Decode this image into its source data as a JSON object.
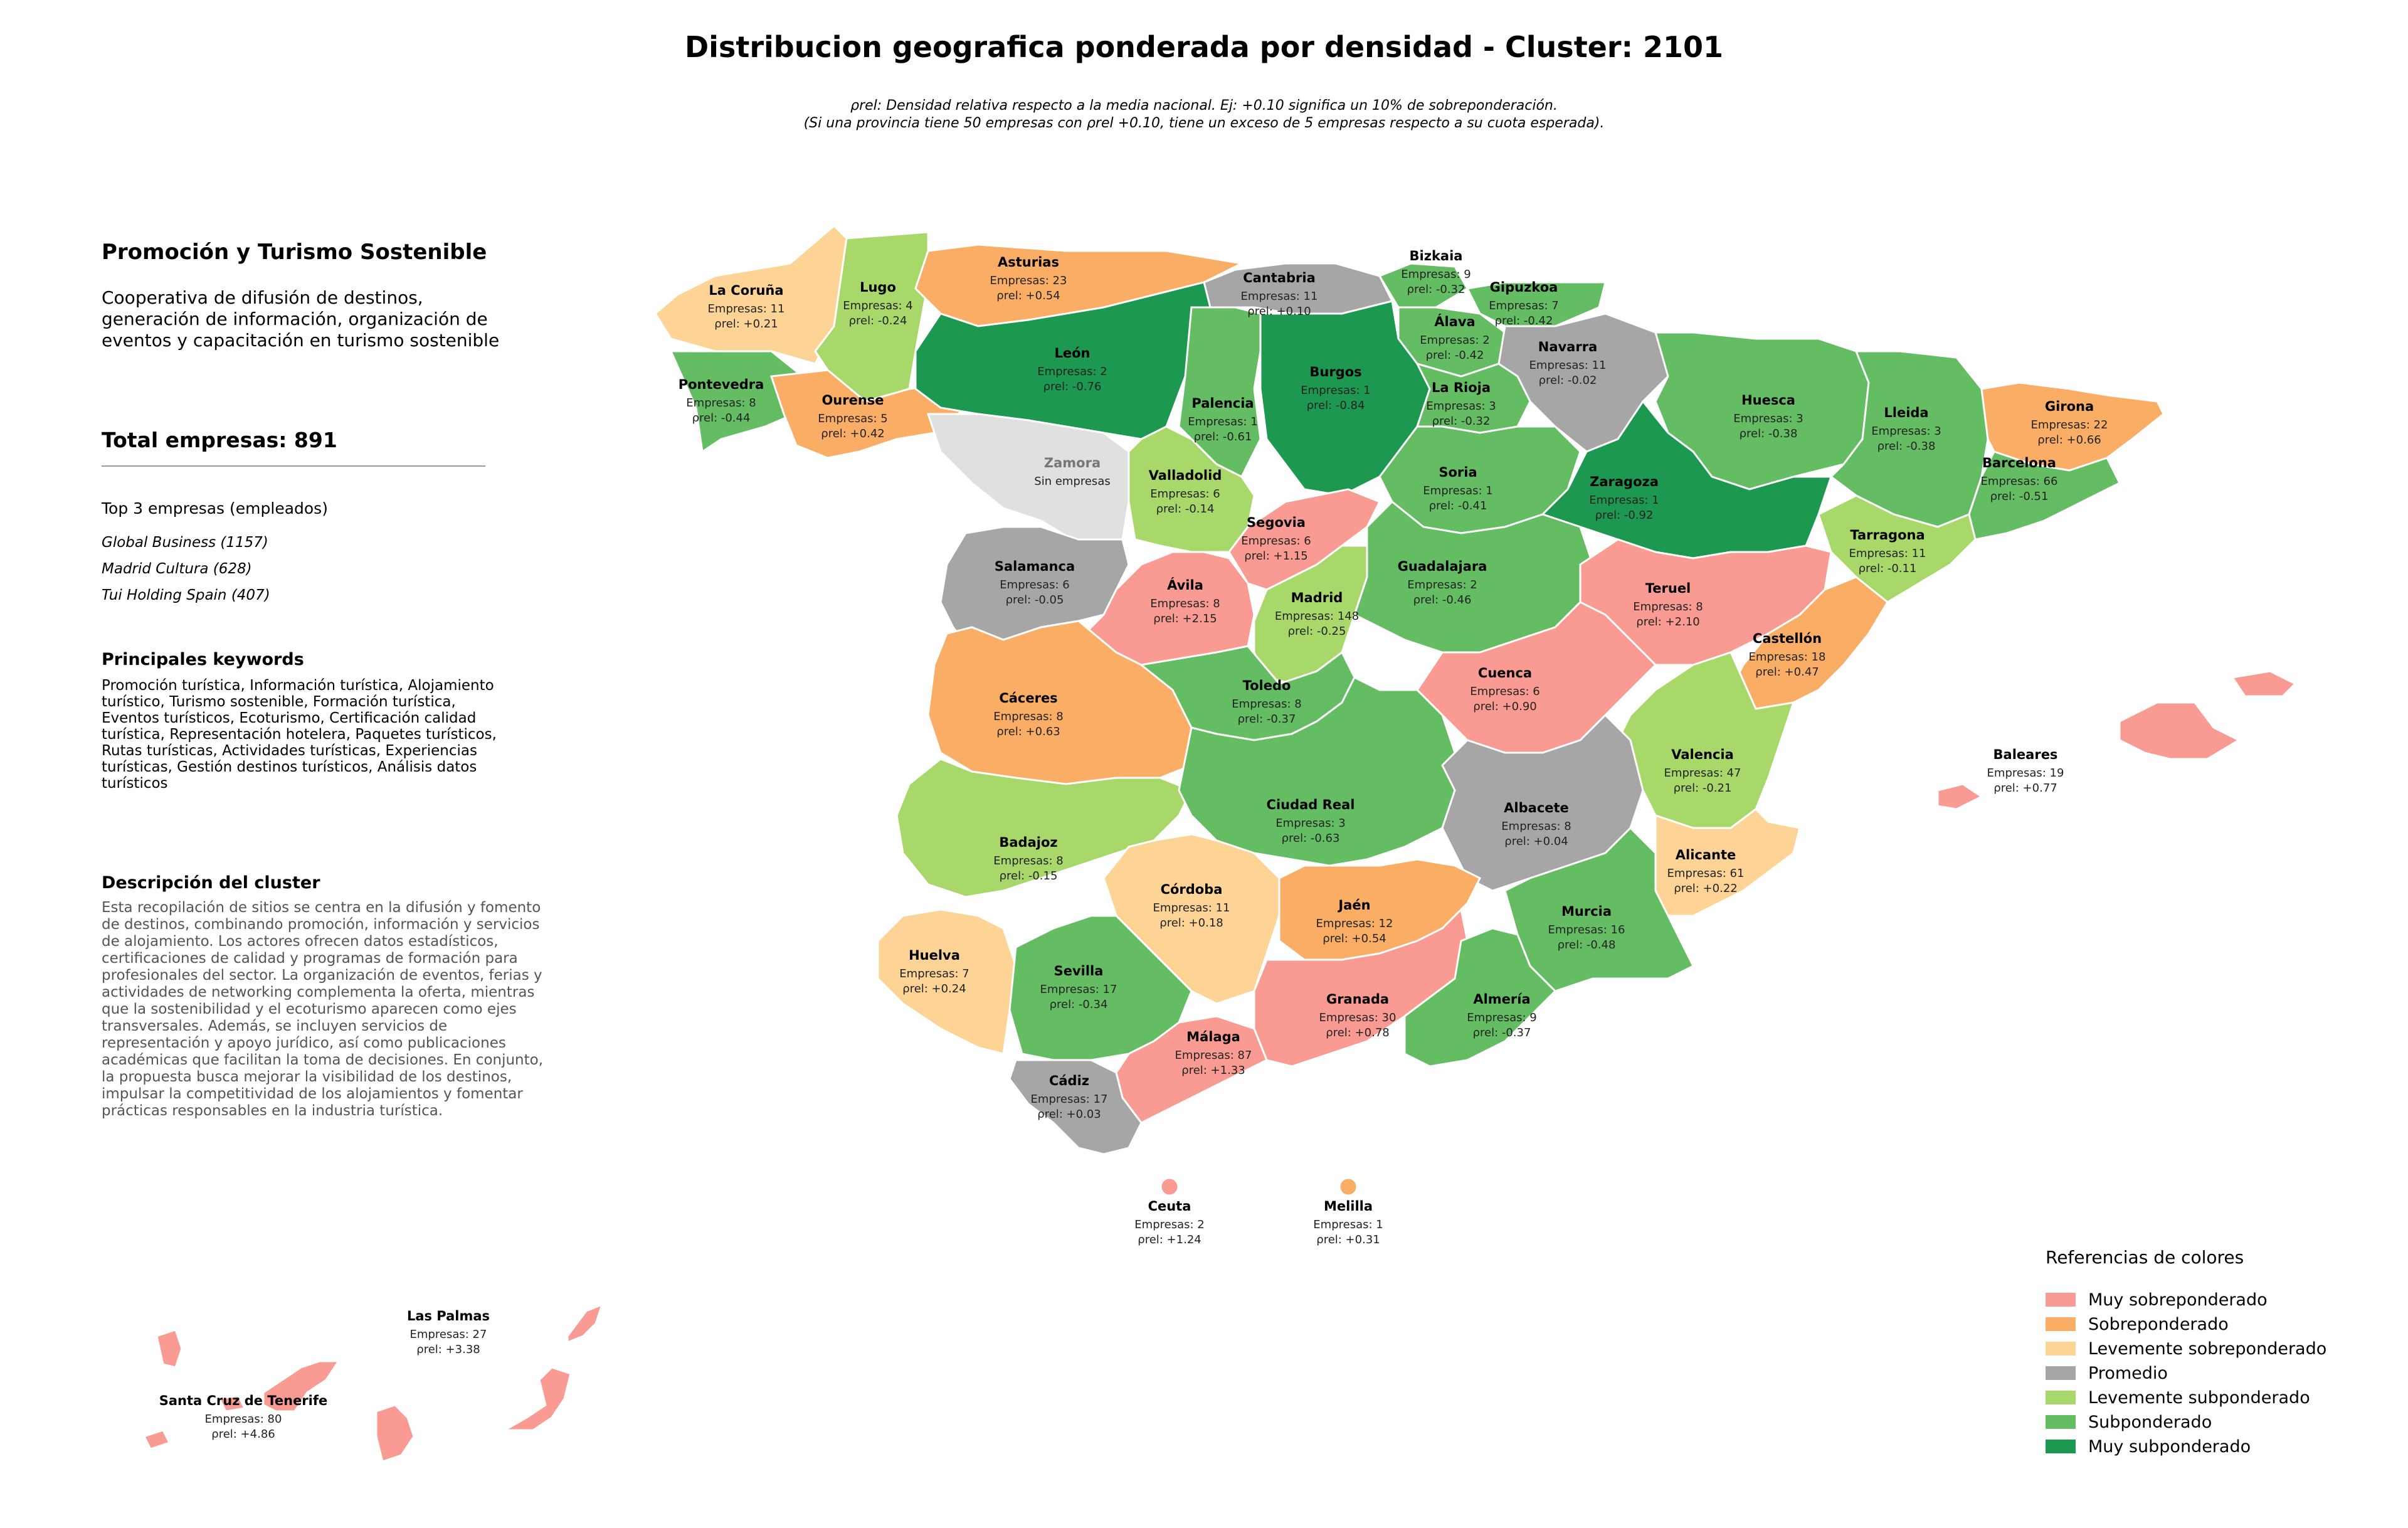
{
  "title": "Distribucion geografica ponderada por densidad - Cluster: 2101",
  "notes": {
    "line1": "ρrel: Densidad relativa respecto a la media nacional. Ej: +0.10 significa un 10% de sobreponderación.",
    "line2": "(Si una provincia tiene 50 empresas con ρrel +0.10, tiene un exceso de 5 empresas respecto a su cuota esperada)."
  },
  "sidebar": {
    "cluster_name": "Promoción y Turismo Sostenible",
    "cluster_summary": "Cooperativa de difusión de destinos, generación de información, organización de eventos y capacitación en turismo sostenible",
    "total": "Total empresas: 891",
    "top3_title": "Top 3 empresas (empleados)",
    "top3": [
      "Global Business (1157)",
      "Madrid Cultura (628)",
      "Tui Holding Spain (407)"
    ],
    "keywords_title": "Principales keywords",
    "keywords": "Promoción turística, Información turística, Alojamiento turístico, Turismo sostenible, Formación turística, Eventos turísticos, Ecoturismo, Certificación calidad turística, Representación hotelera, Paquetes turísticos, Rutas turísticas, Actividades turísticas, Experiencias turísticas, Gestión destinos turísticos, Análisis datos turísticos",
    "description_title": "Descripción del cluster",
    "description": "Esta recopilación de sitios se centra en la difusión y fomento de destinos, combinando promoción, información y servicios de alojamiento. Los actores ofrecen datos estadísticos, certificaciones de calidad y programas de formación para profesionales del sector. La organización de eventos, ferias y actividades de networking complementa la oferta, mientras que la sostenibilidad y el ecoturismo aparecen como ejes transversales. Además, se incluyen servicios de representación y apoyo jurídico, así como publicaciones académicas que facilitan la toma de decisiones. En conjunto, la propuesta busca mejorar la visibilidad de los destinos, impulsar la competitividad de los alojamientos y fomentar prácticas responsables en la industria turística."
  },
  "legend": {
    "title": "Referencias de colores",
    "items": [
      {
        "label": "Muy sobreponderado",
        "color": "#f99a93"
      },
      {
        "label": "Sobreponderado",
        "color": "#f9ad65"
      },
      {
        "label": "Levemente sobreponderado",
        "color": "#fdd495"
      },
      {
        "label": "Promedio",
        "color": "#a6a6a6"
      },
      {
        "label": "Levemente subponderado",
        "color": "#a8d86a"
      },
      {
        "label": "Subponderado",
        "color": "#64bd63"
      },
      {
        "label": "Muy subponderado",
        "color": "#1d9850"
      }
    ]
  },
  "no_data": {
    "label": "Sin empresas",
    "color": "#e0e0e0"
  },
  "provinces": [
    {
      "name": "La Coruña",
      "companies": "Empresas: 11",
      "rho": "ρrel: +0.21",
      "level": "Levemente sobreponderado"
    },
    {
      "name": "Lugo",
      "companies": "Empresas: 4",
      "rho": "ρrel: -0.24",
      "level": "Levemente subponderado"
    },
    {
      "name": "Asturias",
      "companies": "Empresas: 23",
      "rho": "ρrel: +0.54",
      "level": "Sobreponderado"
    },
    {
      "name": "Cantabria",
      "companies": "Empresas: 11",
      "rho": "ρrel: +0.10",
      "level": "Promedio"
    },
    {
      "name": "Bizkaia",
      "companies": "Empresas: 9",
      "rho": "ρrel: -0.32",
      "level": "Subponderado"
    },
    {
      "name": "Gipuzkoa",
      "companies": "Empresas: 7",
      "rho": "ρrel: -0.42",
      "level": "Subponderado"
    },
    {
      "name": "Álava",
      "companies": "Empresas: 2",
      "rho": "ρrel: -0.42",
      "level": "Subponderado"
    },
    {
      "name": "Navarra",
      "companies": "Empresas: 11",
      "rho": "ρrel: -0.02",
      "level": "Promedio"
    },
    {
      "name": "Pontevedra",
      "companies": "Empresas: 8",
      "rho": "ρrel: -0.44",
      "level": "Subponderado"
    },
    {
      "name": "Ourense",
      "companies": "Empresas: 5",
      "rho": "ρrel: +0.42",
      "level": "Sobreponderado"
    },
    {
      "name": "León",
      "companies": "Empresas: 2",
      "rho": "ρrel: -0.76",
      "level": "Muy subponderado"
    },
    {
      "name": "Palencia",
      "companies": "Empresas: 1",
      "rho": "ρrel: -0.61",
      "level": "Subponderado"
    },
    {
      "name": "Burgos",
      "companies": "Empresas: 1",
      "rho": "ρrel: -0.84",
      "level": "Muy subponderado"
    },
    {
      "name": "La Rioja",
      "companies": "Empresas: 3",
      "rho": "ρrel: -0.32",
      "level": "Subponderado"
    },
    {
      "name": "Huesca",
      "companies": "Empresas: 3",
      "rho": "ρrel: -0.38",
      "level": "Subponderado"
    },
    {
      "name": "Lleida",
      "companies": "Empresas: 3",
      "rho": "ρrel: -0.38",
      "level": "Subponderado"
    },
    {
      "name": "Girona",
      "companies": "Empresas: 22",
      "rho": "ρrel: +0.66",
      "level": "Sobreponderado"
    },
    {
      "name": "Zamora",
      "companies": "Sin empresas",
      "rho": "",
      "level": "Sin empresas"
    },
    {
      "name": "Valladolid",
      "companies": "Empresas: 6",
      "rho": "ρrel: -0.14",
      "level": "Levemente subponderado"
    },
    {
      "name": "Soria",
      "companies": "Empresas: 1",
      "rho": "ρrel: -0.41",
      "level": "Subponderado"
    },
    {
      "name": "Zaragoza",
      "companies": "Empresas: 1",
      "rho": "ρrel: -0.92",
      "level": "Muy subponderado"
    },
    {
      "name": "Barcelona",
      "companies": "Empresas: 66",
      "rho": "ρrel: -0.51",
      "level": "Subponderado"
    },
    {
      "name": "Tarragona",
      "companies": "Empresas: 11",
      "rho": "ρrel: -0.11",
      "level": "Levemente subponderado"
    },
    {
      "name": "Segovia",
      "companies": "Empresas: 6",
      "rho": "ρrel: +1.15",
      "level": "Muy sobreponderado"
    },
    {
      "name": "Salamanca",
      "companies": "Empresas: 6",
      "rho": "ρrel: -0.05",
      "level": "Promedio"
    },
    {
      "name": "Ávila",
      "companies": "Empresas: 8",
      "rho": "ρrel: +2.15",
      "level": "Muy sobreponderado"
    },
    {
      "name": "Madrid",
      "companies": "Empresas: 148",
      "rho": "ρrel: -0.25",
      "level": "Levemente subponderado"
    },
    {
      "name": "Guadalajara",
      "companies": "Empresas: 2",
      "rho": "ρrel: -0.46",
      "level": "Subponderado"
    },
    {
      "name": "Teruel",
      "companies": "Empresas: 8",
      "rho": "ρrel: +2.10",
      "level": "Muy sobreponderado"
    },
    {
      "name": "Castellón",
      "companies": "Empresas: 18",
      "rho": "ρrel: +0.47",
      "level": "Sobreponderado"
    },
    {
      "name": "Cáceres",
      "companies": "Empresas: 8",
      "rho": "ρrel: +0.63",
      "level": "Sobreponderado"
    },
    {
      "name": "Toledo",
      "companies": "Empresas: 8",
      "rho": "ρrel: -0.37",
      "level": "Subponderado"
    },
    {
      "name": "Cuenca",
      "companies": "Empresas: 6",
      "rho": "ρrel: +0.90",
      "level": "Muy sobreponderado"
    },
    {
      "name": "Valencia",
      "companies": "Empresas: 47",
      "rho": "ρrel: -0.21",
      "level": "Levemente subponderado"
    },
    {
      "name": "Baleares",
      "companies": "Empresas: 19",
      "rho": "ρrel: +0.77",
      "level": "Muy sobreponderado"
    },
    {
      "name": "Badajoz",
      "companies": "Empresas: 8",
      "rho": "ρrel: -0.15",
      "level": "Levemente subponderado"
    },
    {
      "name": "Ciudad Real",
      "companies": "Empresas: 3",
      "rho": "ρrel: -0.63",
      "level": "Subponderado"
    },
    {
      "name": "Albacete",
      "companies": "Empresas: 8",
      "rho": "ρrel: +0.04",
      "level": "Promedio"
    },
    {
      "name": "Alicante",
      "companies": "Empresas: 61",
      "rho": "ρrel: +0.22",
      "level": "Levemente sobreponderado"
    },
    {
      "name": "Córdoba",
      "companies": "Empresas: 11",
      "rho": "ρrel: +0.18",
      "level": "Levemente sobreponderado"
    },
    {
      "name": "Jaén",
      "companies": "Empresas: 12",
      "rho": "ρrel: +0.54",
      "level": "Sobreponderado"
    },
    {
      "name": "Murcia",
      "companies": "Empresas: 16",
      "rho": "ρrel: -0.48",
      "level": "Subponderado"
    },
    {
      "name": "Huelva",
      "companies": "Empresas: 7",
      "rho": "ρrel: +0.24",
      "level": "Levemente sobreponderado"
    },
    {
      "name": "Sevilla",
      "companies": "Empresas: 17",
      "rho": "ρrel: -0.34",
      "level": "Subponderado"
    },
    {
      "name": "Granada",
      "companies": "Empresas: 30",
      "rho": "ρrel: +0.78",
      "level": "Muy sobreponderado"
    },
    {
      "name": "Almería",
      "companies": "Empresas: 9",
      "rho": "ρrel: -0.37",
      "level": "Subponderado"
    },
    {
      "name": "Málaga",
      "companies": "Empresas: 87",
      "rho": "ρrel: +1.33",
      "level": "Muy sobreponderado"
    },
    {
      "name": "Cádiz",
      "companies": "Empresas: 17",
      "rho": "ρrel: +0.03",
      "level": "Promedio"
    },
    {
      "name": "Ceuta",
      "companies": "Empresas: 2",
      "rho": "ρrel: +1.24",
      "level": "Muy sobreponderado"
    },
    {
      "name": "Melilla",
      "companies": "Empresas: 1",
      "rho": "ρrel: +0.31",
      "level": "Sobreponderado"
    },
    {
      "name": "Las Palmas",
      "companies": "Empresas: 27",
      "rho": "ρrel: +3.38",
      "level": "Muy sobreponderado"
    },
    {
      "name": "Santa Cruz de Tenerife",
      "companies": "Empresas: 80",
      "rho": "ρrel: +4.86",
      "level": "Muy sobreponderado"
    }
  ]
}
